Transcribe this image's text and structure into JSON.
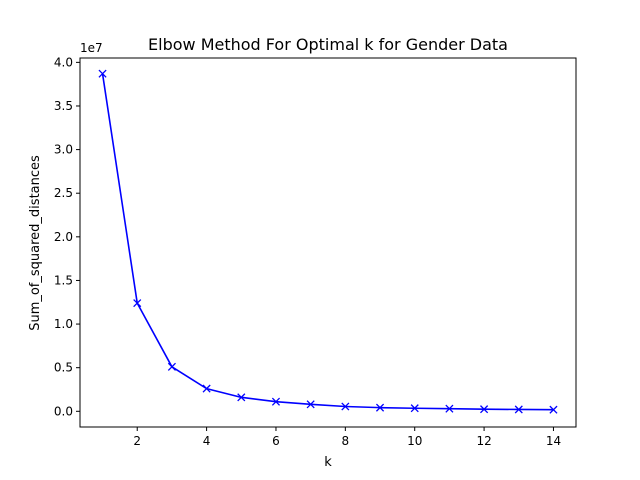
{
  "chart_data": {
    "type": "line",
    "title": "Elbow Method For Optimal k for Gender Data",
    "xlabel": "k",
    "ylabel": "Sum_of_squared_distances",
    "y_scale_label": "1e7",
    "y_multiplier": 10000000,
    "xlim": [
      0.35,
      14.65
    ],
    "ylim": [
      -1800000,
      40500000
    ],
    "xticks": [
      2,
      4,
      6,
      8,
      10,
      12,
      14
    ],
    "yticks": [
      0,
      5000000,
      10000000,
      15000000,
      20000000,
      25000000,
      30000000,
      35000000,
      40000000
    ],
    "ytick_labels": [
      "0.0",
      "0.5",
      "1.0",
      "1.5",
      "2.0",
      "2.5",
      "3.0",
      "3.5",
      "4.0"
    ],
    "grid": false,
    "legend": "none",
    "x": [
      1,
      2,
      3,
      4,
      5,
      6,
      7,
      8,
      9,
      10,
      11,
      12,
      13,
      14
    ],
    "series": [
      {
        "values": [
          38700000,
          12400000,
          5100000,
          2600000,
          1600000,
          1100000,
          800000,
          550000,
          420000,
          350000,
          300000,
          240000,
          210000,
          180000
        ],
        "color": "#0000ff",
        "marker": "x"
      }
    ]
  }
}
